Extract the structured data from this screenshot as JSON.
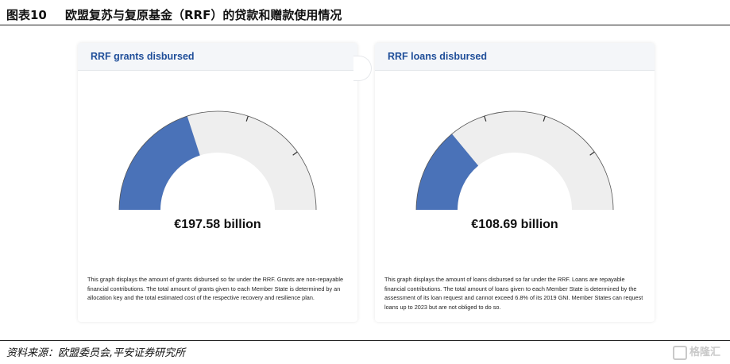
{
  "header": {
    "figure_number": "图表10",
    "title": "欧盟复苏与复原基金（RRF）的贷款和赠款使用情况"
  },
  "footer": {
    "source": "资料来源：欧盟委员会,平安证券研究所",
    "watermark": "格隆汇"
  },
  "colors": {
    "filled": "#4a72b8",
    "remaining": "#eeeeee",
    "title": "#1f4e99"
  },
  "chart_data": [
    {
      "type": "gauge",
      "title": "RRF grants disbursed",
      "value_label": "€197.58 billion",
      "fill_fraction": 0.4,
      "description": "This graph displays the amount of grants disbursed so far under the RRF. Grants are non-repayable financial contributions. The total amount of grants given to each Member State is determined by an allocation key and the total estimated cost of the respective recovery and resilience plan."
    },
    {
      "type": "gauge",
      "title": "RRF loans disbursed",
      "value_label": "€108.69 billion",
      "fill_fraction": 0.28,
      "description": "This graph displays the amount of loans disbursed so far under the RRF. Loans are repayable financial contributions. The total amount of loans given to each Member State is determined by the assessment of its loan request and cannot exceed 6.8% of its 2019 GNI. Member States can request loans up to 2023 but are not obliged to do so."
    }
  ]
}
